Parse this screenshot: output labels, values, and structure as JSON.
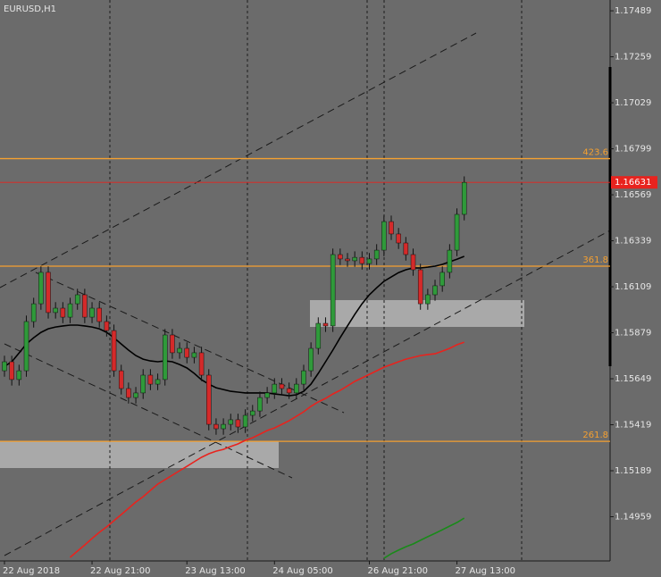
{
  "chart_data": {
    "type": "candlestick",
    "title": "EURUSD,H1",
    "categories": [
      "22 Aug 2018",
      null,
      null,
      null,
      null,
      null,
      null,
      null,
      null,
      null,
      null,
      null,
      "22 Aug 21:00",
      null,
      null,
      null,
      null,
      null,
      null,
      null,
      null,
      null,
      null,
      null,
      null,
      "23 Aug 13:00",
      null,
      null,
      null,
      null,
      null,
      null,
      null,
      null,
      null,
      null,
      null,
      "24 Aug 05:00",
      null,
      null,
      null,
      null,
      null,
      null,
      null,
      null,
      null,
      null,
      null,
      null,
      "26 Aug 21:00",
      null,
      null,
      null,
      null,
      null,
      null,
      null,
      null,
      null,
      null,
      null,
      "27 Aug 13:00",
      null
    ],
    "open": [
      1.15689,
      1.15734,
      1.15645,
      1.15689,
      1.15935,
      1.16024,
      1.16181,
      1.1598,
      1.16002,
      1.15957,
      1.16024,
      1.16069,
      1.15957,
      1.16002,
      1.15935,
      1.1589,
      1.15689,
      1.156,
      1.15555,
      1.15578,
      1.15667,
      1.15622,
      1.15645,
      1.15868,
      1.15779,
      1.15801,
      1.15756,
      1.15779,
      1.15667,
      1.15421,
      1.15399,
      1.15421,
      1.15444,
      1.15408,
      1.15466,
      1.15488,
      1.15555,
      1.15578,
      1.15622,
      1.156,
      1.15578,
      1.15622,
      1.15689,
      1.15801,
      1.15926,
      1.15913,
      1.1627,
      1.16248,
      1.16239,
      1.16256,
      1.16225,
      1.16248,
      1.16292,
      1.16435,
      1.16373,
      1.16328,
      1.1627,
      1.16194,
      1.16024,
      1.16069,
      1.16114,
      1.16181,
      1.16292,
      1.16471
    ],
    "high": [
      1.15764,
      1.15764,
      1.15719,
      1.15965,
      1.16054,
      1.16211,
      1.16211,
      1.16032,
      1.16032,
      1.16054,
      1.16099,
      1.16099,
      1.16032,
      1.16032,
      1.15965,
      1.1592,
      1.15719,
      1.1563,
      1.15608,
      1.15697,
      1.15697,
      1.15675,
      1.15898,
      1.15898,
      1.15831,
      1.15831,
      1.15809,
      1.15809,
      1.15697,
      1.15451,
      1.15451,
      1.15474,
      1.15474,
      1.15496,
      1.15518,
      1.15585,
      1.15608,
      1.15652,
      1.15652,
      1.1563,
      1.15652,
      1.15719,
      1.15831,
      1.15956,
      1.15956,
      1.163,
      1.163,
      1.16278,
      1.16286,
      1.16286,
      1.16278,
      1.16322,
      1.16465,
      1.16465,
      1.16403,
      1.16358,
      1.163,
      1.16224,
      1.16099,
      1.16144,
      1.16211,
      1.16322,
      1.16501,
      1.16661
    ],
    "low": [
      1.15659,
      1.15615,
      1.15615,
      1.15659,
      1.15905,
      1.15994,
      1.1595,
      1.1595,
      1.15927,
      1.15927,
      1.15994,
      1.15927,
      1.15927,
      1.15905,
      1.1586,
      1.15659,
      1.1557,
      1.15525,
      1.15525,
      1.15548,
      1.15592,
      1.15592,
      1.15615,
      1.15749,
      1.15749,
      1.15726,
      1.15726,
      1.15637,
      1.15391,
      1.15369,
      1.15369,
      1.15391,
      1.15378,
      1.15378,
      1.15436,
      1.15458,
      1.15525,
      1.15548,
      1.1557,
      1.15548,
      1.15548,
      1.15592,
      1.15659,
      1.15771,
      1.15883,
      1.15883,
      1.16218,
      1.16209,
      1.16209,
      1.16195,
      1.16195,
      1.16218,
      1.16262,
      1.16343,
      1.16298,
      1.1624,
      1.16164,
      1.15994,
      1.15994,
      1.16039,
      1.16084,
      1.16151,
      1.16262,
      1.16441
    ],
    "close": [
      1.15734,
      1.15645,
      1.15689,
      1.15935,
      1.16024,
      1.16181,
      1.1598,
      1.16002,
      1.15957,
      1.16024,
      1.16069,
      1.15957,
      1.16002,
      1.15935,
      1.1589,
      1.15689,
      1.156,
      1.15555,
      1.15578,
      1.15667,
      1.15622,
      1.15645,
      1.15868,
      1.15779,
      1.15801,
      1.15756,
      1.15779,
      1.15667,
      1.15421,
      1.15399,
      1.15421,
      1.15444,
      1.15408,
      1.15466,
      1.15488,
      1.15555,
      1.15578,
      1.15622,
      1.156,
      1.15578,
      1.15622,
      1.15689,
      1.15801,
      1.15926,
      1.15913,
      1.1627,
      1.16248,
      1.16239,
      1.16256,
      1.16225,
      1.16248,
      1.16292,
      1.16435,
      1.16373,
      1.16328,
      1.1627,
      1.16194,
      1.16024,
      1.16069,
      1.16114,
      1.16181,
      1.16292,
      1.16471,
      1.16631
    ],
    "up_color": "#2f9a3a",
    "down_color": "#d42a2a",
    "series": [
      {
        "color": "#000000",
        "values": [
          1.15711,
          1.15734,
          1.15778,
          1.15823,
          1.15854,
          1.15881,
          1.15899,
          1.15908,
          1.15913,
          1.15917,
          1.15917,
          1.15913,
          1.15908,
          1.15899,
          1.15881,
          1.15854,
          1.15823,
          1.15792,
          1.15765,
          1.15747,
          1.15738,
          1.15734,
          1.15738,
          1.15734,
          1.1572,
          1.15703,
          1.15676,
          1.15644,
          1.15622,
          1.15604,
          1.15595,
          1.15586,
          1.15582,
          1.15578,
          1.15578,
          1.15578,
          1.15578,
          1.15573,
          1.15569,
          1.15564,
          1.15569,
          1.15586,
          1.15622,
          1.15676,
          1.15734,
          1.15792,
          1.15854,
          1.15913,
          1.15971,
          1.16024,
          1.16069,
          1.16104,
          1.16136,
          1.16158,
          1.1618,
          1.16194,
          1.16203,
          1.16203,
          1.16207,
          1.16212,
          1.16221,
          1.16234,
          1.16247,
          1.16261
        ]
      },
      {
        "color": "#e8231e",
        "values": [
          null,
          null,
          null,
          null,
          null,
          null,
          null,
          null,
          null,
          1.14756,
          1.14787,
          1.14818,
          1.1485,
          1.14881,
          1.14908,
          1.14939,
          1.1497,
          1.15001,
          1.15033,
          1.15059,
          1.15091,
          1.15122,
          1.15144,
          1.15167,
          1.15189,
          1.15211,
          1.15234,
          1.15256,
          1.15274,
          1.15287,
          1.15296,
          1.1531,
          1.15323,
          1.15341,
          1.15354,
          1.15372,
          1.1539,
          1.15403,
          1.15421,
          1.15439,
          1.15461,
          1.15484,
          1.15511,
          1.15533,
          1.15551,
          1.15573,
          1.15591,
          1.15613,
          1.15636,
          1.15653,
          1.15671,
          1.15689,
          1.15707,
          1.1572,
          1.15734,
          1.15747,
          1.15756,
          1.15765,
          1.1577,
          1.15774,
          1.15787,
          1.15801,
          1.15819,
          1.15832
        ]
      },
      {
        "color": "#1a8a1a",
        "values": [
          null,
          null,
          null,
          null,
          null,
          null,
          null,
          null,
          null,
          null,
          null,
          null,
          null,
          null,
          null,
          null,
          null,
          null,
          null,
          null,
          null,
          null,
          null,
          null,
          null,
          null,
          null,
          null,
          null,
          null,
          null,
          null,
          null,
          null,
          null,
          null,
          null,
          null,
          null,
          null,
          null,
          null,
          null,
          null,
          null,
          null,
          null,
          null,
          null,
          null,
          null,
          null,
          1.14751,
          1.14774,
          1.14792,
          1.14809,
          1.14823,
          1.14841,
          1.14859,
          1.14876,
          1.14894,
          1.14912,
          1.1493,
          1.14952
        ]
      }
    ],
    "levels": [
      {
        "label": "423.6",
        "price": 1.1675
      },
      {
        "label": "361.8",
        "price": 1.16212
      },
      {
        "label": "261.8",
        "price": 1.15336
      }
    ],
    "level_color": "#f5a030",
    "last_price": 1.16631,
    "last_price_color": "#e8231e",
    "ylim": [
      1.14738,
      1.17543
    ],
    "yticks": [
      1.17489,
      1.17259,
      1.17029,
      1.16799,
      1.16569,
      1.16339,
      1.16109,
      1.15879,
      1.15649,
      1.15419,
      1.15189,
      1.14959
    ]
  }
}
